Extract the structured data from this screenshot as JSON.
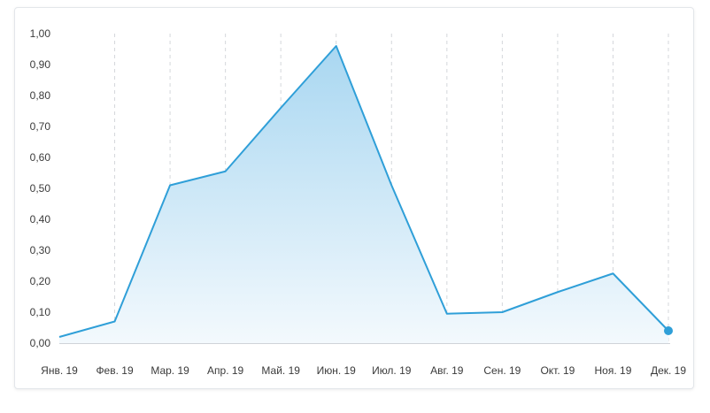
{
  "chart_data": {
    "type": "area",
    "x": [
      "Янв. 19",
      "Фев. 19",
      "Мар. 19",
      "Апр. 19",
      "Май. 19",
      "Июн. 19",
      "Июл. 19",
      "Авг. 19",
      "Сен. 19",
      "Окт. 19",
      "Ноя. 19",
      "Дек. 19"
    ],
    "series": [
      {
        "name": "",
        "values": [
          0.02,
          0.07,
          0.51,
          0.555,
          0.76,
          0.96,
          0.51,
          0.095,
          0.1,
          0.165,
          0.225,
          0.04
        ]
      }
    ],
    "y_ticks": [
      "0,00",
      "0,10",
      "0,20",
      "0,30",
      "0,40",
      "0,50",
      "0,60",
      "0,70",
      "0,80",
      "0,90",
      "1,00"
    ],
    "ylim": [
      0,
      1
    ],
    "grid": "vertical-dashed",
    "title": "",
    "xlabel": "",
    "ylabel": "",
    "colors": {
      "line": "#2f9fd8",
      "fill_top": "#a9d7f1",
      "fill_bottom": "#f3f9fd",
      "grid": "#d4d7db",
      "axis": "#cfd3d8",
      "text": "#3a3a3a",
      "border": "#e3e6ea"
    }
  }
}
